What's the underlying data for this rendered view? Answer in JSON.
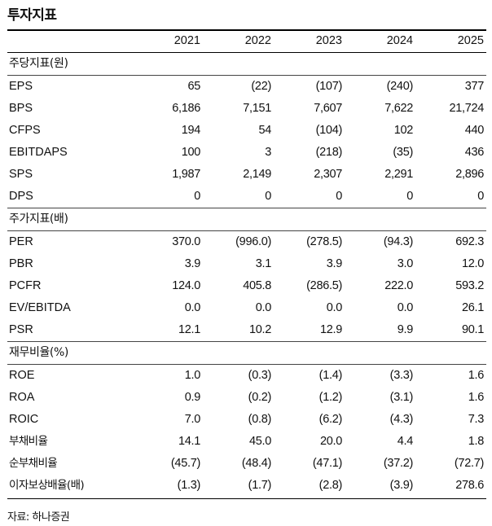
{
  "title": "투자지표",
  "years": [
    "2021",
    "2022",
    "2023",
    "2024",
    "2025"
  ],
  "sections": [
    {
      "header": "주당지표(원)",
      "rows": [
        {
          "label": "EPS",
          "values": [
            "65",
            "(22)",
            "(107)",
            "(240)",
            "377"
          ]
        },
        {
          "label": "BPS",
          "values": [
            "6,186",
            "7,151",
            "7,607",
            "7,622",
            "21,724"
          ]
        },
        {
          "label": "CFPS",
          "values": [
            "194",
            "54",
            "(104)",
            "102",
            "440"
          ]
        },
        {
          "label": "EBITDAPS",
          "values": [
            "100",
            "3",
            "(218)",
            "(35)",
            "436"
          ]
        },
        {
          "label": "SPS",
          "values": [
            "1,987",
            "2,149",
            "2,307",
            "2,291",
            "2,896"
          ]
        },
        {
          "label": "DPS",
          "values": [
            "0",
            "0",
            "0",
            "0",
            "0"
          ]
        }
      ]
    },
    {
      "header": "주가지표(배)",
      "rows": [
        {
          "label": "PER",
          "values": [
            "370.0",
            "(996.0)",
            "(278.5)",
            "(94.3)",
            "692.3"
          ]
        },
        {
          "label": "PBR",
          "values": [
            "3.9",
            "3.1",
            "3.9",
            "3.0",
            "12.0"
          ]
        },
        {
          "label": "PCFR",
          "values": [
            "124.0",
            "405.8",
            "(286.5)",
            "222.0",
            "593.2"
          ]
        },
        {
          "label": "EV/EBITDA",
          "values": [
            "0.0",
            "0.0",
            "0.0",
            "0.0",
            "26.1"
          ]
        },
        {
          "label": "PSR",
          "values": [
            "12.1",
            "10.2",
            "12.9",
            "9.9",
            "90.1"
          ]
        }
      ]
    },
    {
      "header": "재무비율(%)",
      "rows": [
        {
          "label": "ROE",
          "values": [
            "1.0",
            "(0.3)",
            "(1.4)",
            "(3.3)",
            "1.6"
          ]
        },
        {
          "label": "ROA",
          "values": [
            "0.9",
            "(0.2)",
            "(1.2)",
            "(3.1)",
            "1.6"
          ]
        },
        {
          "label": "ROIC",
          "values": [
            "7.0",
            "(0.8)",
            "(6.2)",
            "(4.3)",
            "7.3"
          ]
        },
        {
          "label": "부채비율",
          "values": [
            "14.1",
            "45.0",
            "20.0",
            "4.4",
            "1.8"
          ]
        },
        {
          "label": "순부채비율",
          "values": [
            "(45.7)",
            "(48.4)",
            "(47.1)",
            "(37.2)",
            "(72.7)"
          ]
        },
        {
          "label": "이자보상배율(배)",
          "values": [
            "(1.3)",
            "(1.7)",
            "(2.8)",
            "(3.9)",
            "278.6"
          ]
        }
      ]
    }
  ],
  "source": "자료: 하나증권"
}
